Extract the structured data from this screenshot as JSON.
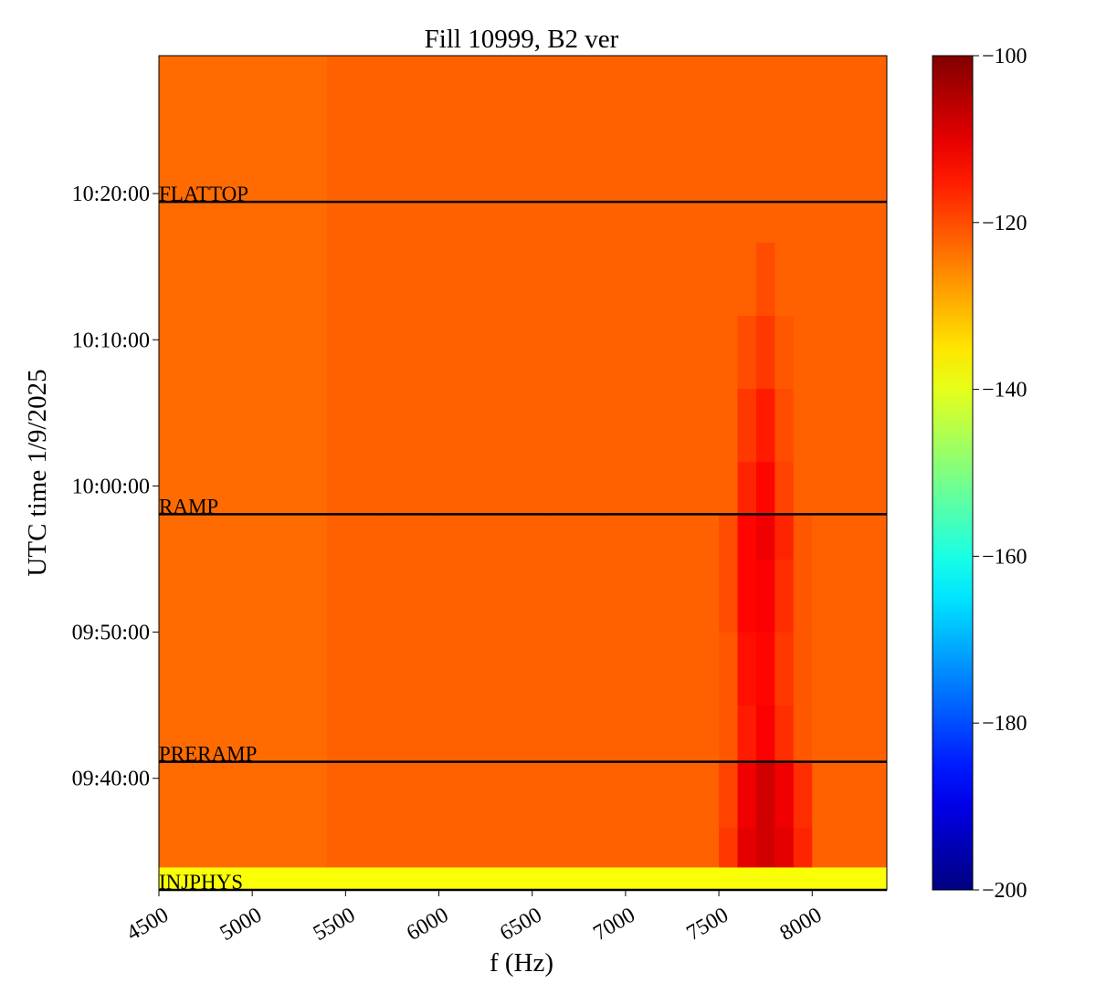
{
  "chart_data": {
    "type": "heatmap",
    "title": "Fill 10999, B2 ver",
    "xlabel": "f (Hz)",
    "ylabel": "UTC time 1/9/2025",
    "colormap": "jet",
    "xlim": [
      4500,
      8400
    ],
    "xticks": [
      4500,
      5000,
      5500,
      6000,
      6500,
      7000,
      7500,
      8000
    ],
    "ylim": [
      34342,
      37766
    ],
    "yticks": [
      {
        "value": 34800,
        "label": "09:40:00"
      },
      {
        "value": 35400,
        "label": "09:50:00"
      },
      {
        "value": 36000,
        "label": "10:00:00"
      },
      {
        "value": 36600,
        "label": "10:10:00"
      },
      {
        "value": 37200,
        "label": "10:20:00"
      }
    ],
    "zlim": [
      -200,
      -100
    ],
    "zticks": [
      {
        "value": -100,
        "label": "−100"
      },
      {
        "value": -120,
        "label": "−120"
      },
      {
        "value": -140,
        "label": "−140"
      },
      {
        "value": -160,
        "label": "−160"
      },
      {
        "value": -180,
        "label": "−180"
      },
      {
        "value": -200,
        "label": "−200"
      }
    ],
    "x_edges": [
      4500,
      4800,
      5100,
      5400,
      5700,
      6000,
      6300,
      6600,
      6900,
      7200,
      7500,
      7600,
      7700,
      7800,
      7900,
      8000,
      8200,
      8400
    ],
    "y_edges": [
      34342,
      34436,
      34600,
      34868,
      35100,
      35400,
      35700,
      35884,
      36100,
      36400,
      36700,
      37000,
      37166,
      37400,
      37766
    ],
    "z": [
      [
        -138,
        -138,
        -138,
        -138,
        -138,
        -138,
        -138,
        -138,
        -138,
        -138,
        -138,
        -138,
        -138,
        -138,
        -138,
        -138,
        -138
      ],
      [
        -123,
        -123,
        -123,
        -122,
        -122,
        -122,
        -122,
        -122,
        -122,
        -122,
        -118,
        -110,
        -108,
        -110,
        -116,
        -122,
        -122
      ],
      [
        -123,
        -123,
        -123,
        -122,
        -122,
        -122,
        -122,
        -122,
        -122,
        -122,
        -119,
        -111,
        -108,
        -111,
        -117,
        -122,
        -122
      ],
      [
        -123,
        -123,
        -123,
        -122,
        -122,
        -122,
        -122,
        -122,
        -122,
        -122,
        -121,
        -115,
        -112,
        -117,
        -121,
        -122,
        -122
      ],
      [
        -123,
        -123,
        -123,
        -122,
        -122,
        -122,
        -122,
        -122,
        -122,
        -122,
        -121,
        -114,
        -113,
        -118,
        -121,
        -122,
        -122
      ],
      [
        -123,
        -123,
        -123,
        -122,
        -122,
        -122,
        -122,
        -122,
        -122,
        -122,
        -120,
        -113,
        -112,
        -117,
        -121,
        -122,
        -122
      ],
      [
        -123,
        -123,
        -123,
        -122,
        -122,
        -122,
        -122,
        -122,
        -122,
        -122,
        -120,
        -113,
        -111,
        -116,
        -121,
        -122,
        -122
      ],
      [
        -123,
        -123,
        -123,
        -122,
        -122,
        -122,
        -122,
        -122,
        -122,
        -122,
        -122,
        -116,
        -113,
        -119,
        -122,
        -122,
        -122
      ],
      [
        -123,
        -123,
        -123,
        -122,
        -122,
        -122,
        -122,
        -122,
        -122,
        -122,
        -122,
        -118,
        -115,
        -120,
        -122,
        -122,
        -122
      ],
      [
        -123,
        -123,
        -123,
        -122,
        -122,
        -122,
        -122,
        -122,
        -122,
        -122,
        -122,
        -120,
        -118,
        -121,
        -122,
        -122,
        -122
      ],
      [
        -123,
        -123,
        -123,
        -122,
        -122,
        -122,
        -122,
        -122,
        -122,
        -122,
        -122,
        -122,
        -120,
        -122,
        -122,
        -122,
        -122
      ],
      [
        -123,
        -123,
        -123,
        -122,
        -122,
        -122,
        -122,
        -122,
        -122,
        -122,
        -122,
        -122,
        -122,
        -122,
        -122,
        -122,
        -122
      ],
      [
        -123,
        -123,
        -123,
        -122,
        -122,
        -122,
        -122,
        -122,
        -122,
        -122,
        -122,
        -122,
        -122,
        -122,
        -122,
        -122,
        -122
      ],
      [
        -123,
        -123,
        -123,
        -122,
        -122,
        -122,
        -122,
        -122,
        -122,
        -122,
        -122,
        -122,
        -122,
        -122,
        -122,
        -122,
        -122
      ]
    ],
    "events": [
      {
        "label": "INJPHYS",
        "value": 34342
      },
      {
        "label": "PRERAMP",
        "value": 34868
      },
      {
        "label": "RAMP",
        "value": 35884
      },
      {
        "label": "FLATTOP",
        "value": 37166
      }
    ],
    "event_color": "#000000"
  }
}
